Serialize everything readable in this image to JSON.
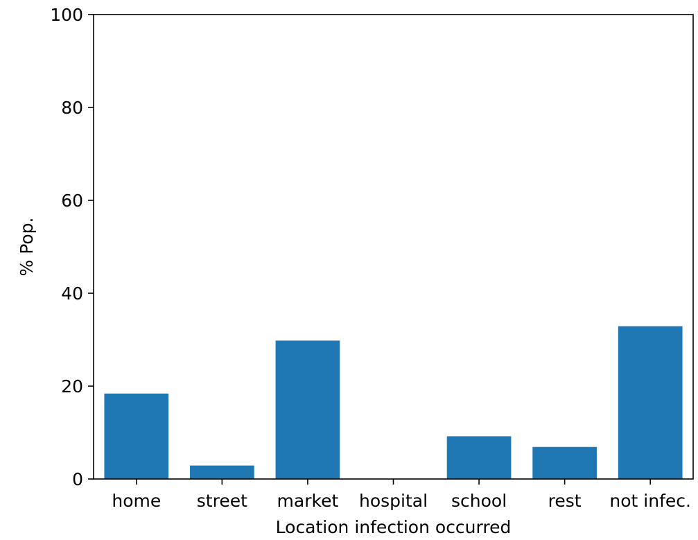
{
  "chart_data": {
    "type": "bar",
    "title": "",
    "xlabel": "Location infection occurred",
    "ylabel": "% Pop.",
    "categories": [
      "home",
      "street",
      "market",
      "hospital",
      "school",
      "rest",
      "not infec."
    ],
    "values": [
      18.4,
      2.9,
      29.8,
      0,
      9.2,
      6.9,
      32.9
    ],
    "ylim": [
      0,
      100
    ],
    "yticks": [
      0,
      20,
      40,
      60,
      80,
      100
    ],
    "grid": false,
    "bar_color": "#1f77b4"
  }
}
